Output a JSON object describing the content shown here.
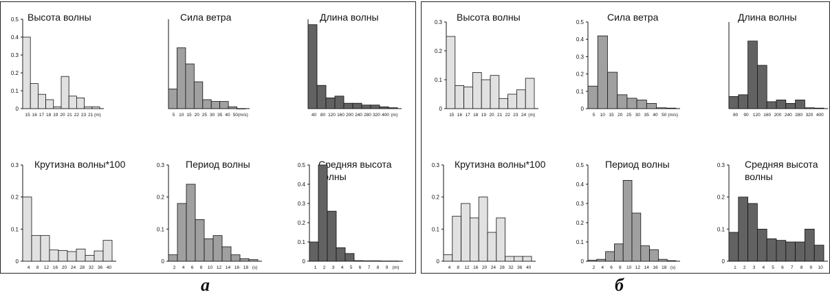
{
  "panels": [
    {
      "caption": "а"
    },
    {
      "caption": "б"
    }
  ],
  "colors": {
    "light": "#e1e1e1",
    "medium": "#a0a0a0",
    "dark": "#626262",
    "stroke": "#111111"
  },
  "chart_data": [
    {
      "type": "bar",
      "panel": "a",
      "title": "Высота волны",
      "shade": "light",
      "ylim": [
        0,
        0.5
      ],
      "yticks": [
        "0",
        "0.1",
        "0.2",
        "0.3",
        "0.4",
        "0.5"
      ],
      "xticks": [
        "15",
        "16",
        "17",
        "18",
        "19",
        "20",
        "21",
        "22",
        "23",
        "21",
        "(m)"
      ],
      "values": [
        0.4,
        0.14,
        0.08,
        0.05,
        0.01,
        0.18,
        0.07,
        0.06,
        0.01,
        0.01
      ]
    },
    {
      "type": "bar",
      "panel": "a",
      "title": "Сила ветра",
      "shade": "medium",
      "ylim": [
        0,
        0.5
      ],
      "yticks": [],
      "xticks": [
        "5",
        "10",
        "15",
        "20",
        "25",
        "30",
        "35",
        "40",
        "50",
        "(m/s)"
      ],
      "values": [
        0.11,
        0.34,
        0.25,
        0.15,
        0.05,
        0.04,
        0.04,
        0.01,
        0
      ]
    },
    {
      "type": "bar",
      "panel": "a",
      "title": "Длина волны",
      "shade": "dark",
      "ylim": [
        0,
        0.5
      ],
      "yticks": [],
      "xticks": [
        "40",
        "80",
        "120",
        "160",
        "200",
        "240",
        "280",
        "320",
        "400",
        "(m)"
      ],
      "values": [
        0.47,
        0.13,
        0.06,
        0.07,
        0.03,
        0.03,
        0.02,
        0.02,
        0.01,
        0.005
      ]
    },
    {
      "type": "bar",
      "panel": "a",
      "title": "Крутизна волны*100",
      "shade": "light",
      "ylim": [
        0,
        0.3
      ],
      "yticks": [
        "0",
        "0.1",
        "0.2",
        "0.3"
      ],
      "xticks": [
        "4",
        "8",
        "12",
        "16",
        "20",
        "24",
        "28",
        "32",
        "36",
        "40"
      ],
      "values": [
        0.2,
        0.08,
        0.08,
        0.035,
        0.033,
        0.03,
        0.038,
        0.018,
        0.032,
        0.065
      ]
    },
    {
      "type": "bar",
      "panel": "a",
      "title": "Период волны",
      "shade": "medium",
      "ylim": [
        0,
        0.3
      ],
      "yticks": [
        "0",
        "0.1",
        "0.2",
        "0.3"
      ],
      "xticks": [
        "2",
        "4",
        "6",
        "8",
        "10",
        "12",
        "14",
        "16",
        "18",
        "(s)"
      ],
      "values": [
        0.02,
        0.18,
        0.24,
        0.13,
        0.07,
        0.08,
        0.045,
        0.02,
        0.008,
        0.005
      ]
    },
    {
      "type": "bar",
      "panel": "a",
      "title": "Средняя высота волны",
      "shade": "dark",
      "ylim": [
        0,
        0.5
      ],
      "yticks": [
        "0",
        "0.1",
        "0.2",
        "0.3",
        "0.4",
        "0.5"
      ],
      "xticks": [
        "1",
        "2",
        "3",
        "4",
        "5",
        "6",
        "7",
        "8",
        "9",
        "(m)"
      ],
      "values": [
        0.1,
        0.5,
        0.26,
        0.07,
        0.04,
        0.003,
        0.002,
        0.002,
        0.001,
        0.001
      ]
    },
    {
      "type": "bar",
      "panel": "b",
      "title": "Высота волны",
      "shade": "light",
      "ylim": [
        0,
        0.3
      ],
      "yticks": [
        "0",
        "0.1",
        "0.2",
        "0.3"
      ],
      "xticks": [
        "15",
        "16",
        "17",
        "18",
        "19",
        "20",
        "21",
        "22",
        "23",
        "24",
        "(m)"
      ],
      "values": [
        0.25,
        0.08,
        0.075,
        0.125,
        0.1,
        0.115,
        0.035,
        0.05,
        0.065,
        0.105
      ]
    },
    {
      "type": "bar",
      "panel": "b",
      "title": "Сила ветра",
      "shade": "medium",
      "ylim": [
        0,
        0.5
      ],
      "yticks": [
        "0",
        "0.1",
        "0.2",
        "0.3",
        "0.4",
        "0.5"
      ],
      "xticks": [
        "5",
        "10",
        "15",
        "20",
        "25",
        "30",
        "35",
        "40",
        "50",
        "(m/s)"
      ],
      "values": [
        0.13,
        0.42,
        0.21,
        0.08,
        0.06,
        0.05,
        0.03,
        0.005,
        0.003
      ]
    },
    {
      "type": "bar",
      "panel": "b",
      "title": "Длина волны",
      "shade": "dark",
      "ylim": [
        0,
        0.5
      ],
      "yticks": [],
      "xticks": [
        "80",
        "90",
        "120",
        "160",
        "200",
        "240",
        "280",
        "320",
        "400"
      ],
      "values": [
        0.07,
        0.08,
        0.39,
        0.25,
        0.04,
        0.05,
        0.03,
        0.05,
        0.005,
        0.003
      ]
    },
    {
      "type": "bar",
      "panel": "b",
      "title": "Крутизна волны*100",
      "shade": "light",
      "ylim": [
        0,
        0.3
      ],
      "yticks": [
        "0",
        "0.1",
        "0.2",
        "0.3"
      ],
      "xticks": [
        "4",
        "8",
        "12",
        "16",
        "20",
        "24",
        "28",
        "32",
        "36",
        "40"
      ],
      "values": [
        0.02,
        0.14,
        0.18,
        0.135,
        0.2,
        0.09,
        0.135,
        0.015,
        0.015,
        0.015
      ]
    },
    {
      "type": "bar",
      "panel": "b",
      "title": "Период волны",
      "shade": "medium",
      "ylim": [
        0,
        0.5
      ],
      "yticks": [
        "0",
        "0.1",
        "0.2",
        "0.3",
        "0.4",
        "0.5"
      ],
      "xticks": [
        "2",
        "4",
        "6",
        "8",
        "10",
        "12",
        "14",
        "16",
        "18",
        "(s)"
      ],
      "values": [
        0.005,
        0.01,
        0.05,
        0.09,
        0.42,
        0.25,
        0.08,
        0.06,
        0.01,
        0.003
      ]
    },
    {
      "type": "bar",
      "panel": "b",
      "title": "Средняя высота волны",
      "shade": "dark",
      "ylim": [
        0,
        0.3
      ],
      "yticks": [
        "0",
        "0.1",
        "0.2",
        "0.3"
      ],
      "xticks": [
        "1",
        "2",
        "3",
        "4",
        "5",
        "6",
        "7",
        "8",
        "9",
        "10"
      ],
      "values": [
        0.09,
        0.2,
        0.18,
        0.1,
        0.07,
        0.065,
        0.06,
        0.06,
        0.1,
        0.05
      ]
    }
  ]
}
